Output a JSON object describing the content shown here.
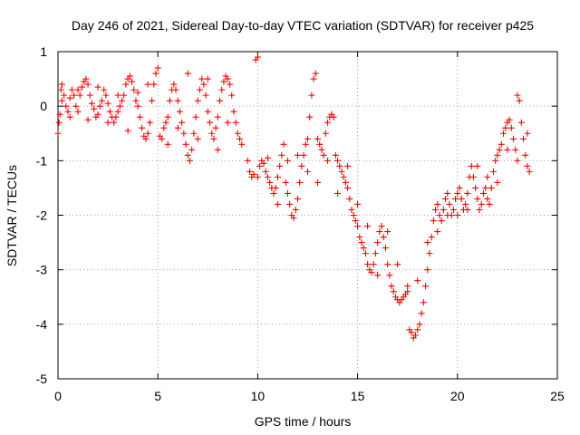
{
  "chart_data": {
    "type": "scatter",
    "title": "Day 246 of 2021, Sidereal Day-to-day VTEC variation (SDTVAR) for receiver p425",
    "xlabel": "GPS time / hours",
    "ylabel": "SDTVAR / TECUs",
    "xlim": [
      0,
      25
    ],
    "ylim": [
      -5,
      1
    ],
    "xticks": [
      0,
      5,
      10,
      15,
      20,
      25
    ],
    "yticks": [
      1,
      0,
      -1,
      -2,
      -3,
      -4,
      -5
    ],
    "x_tick_labels": [
      "0",
      "5",
      "10",
      "15",
      "20",
      "25"
    ],
    "y_tick_labels": [
      "1",
      "0",
      "-1",
      "-2",
      "-3",
      "-4",
      "-5"
    ],
    "grid": true,
    "marker": "+",
    "color": "#ff0000",
    "series": [
      {
        "name": "SDTVAR",
        "points": [
          [
            0.0,
            -0.5
          ],
          [
            0.05,
            -0.3
          ],
          [
            0.1,
            -0.15
          ],
          [
            0.15,
            0.3
          ],
          [
            0.2,
            0.4
          ],
          [
            0.3,
            0.2
          ],
          [
            0.4,
            0.0
          ],
          [
            0.5,
            -0.1
          ],
          [
            0.6,
            0.15
          ],
          [
            0.7,
            0.3
          ],
          [
            0.8,
            0.2
          ],
          [
            0.9,
            0.0
          ],
          [
            1.0,
            -0.1
          ],
          [
            1.1,
            0.2
          ],
          [
            1.2,
            0.35
          ],
          [
            1.3,
            0.45
          ],
          [
            1.4,
            0.5
          ],
          [
            1.5,
            0.4
          ],
          [
            1.6,
            0.2
          ],
          [
            1.7,
            0.05
          ],
          [
            1.8,
            -0.05
          ],
          [
            1.9,
            -0.2
          ],
          [
            2.0,
            -0.15
          ],
          [
            2.1,
            0.0
          ],
          [
            2.2,
            0.1
          ],
          [
            2.3,
            0.3
          ],
          [
            2.4,
            0.2
          ],
          [
            2.5,
            0.05
          ],
          [
            2.6,
            -0.1
          ],
          [
            2.7,
            -0.2
          ],
          [
            2.8,
            -0.3
          ],
          [
            2.9,
            -0.2
          ],
          [
            3.0,
            -0.1
          ],
          [
            3.1,
            0.0
          ],
          [
            3.2,
            0.1
          ],
          [
            3.3,
            0.2
          ],
          [
            3.4,
            0.4
          ],
          [
            3.5,
            0.5
          ],
          [
            3.6,
            0.55
          ],
          [
            3.7,
            0.45
          ],
          [
            3.8,
            0.3
          ],
          [
            3.9,
            0.1
          ],
          [
            4.0,
            0.0
          ],
          [
            4.1,
            -0.2
          ],
          [
            4.2,
            -0.4
          ],
          [
            4.3,
            -0.55
          ],
          [
            4.4,
            -0.6
          ],
          [
            4.5,
            -0.5
          ],
          [
            4.6,
            -0.3
          ],
          [
            4.7,
            0.1
          ],
          [
            4.8,
            0.4
          ],
          [
            4.9,
            0.6
          ],
          [
            5.0,
            0.7
          ],
          [
            5.1,
            -0.55
          ],
          [
            5.2,
            -0.6
          ],
          [
            5.3,
            -0.4
          ],
          [
            5.4,
            -0.3
          ],
          [
            5.5,
            -0.2
          ],
          [
            5.6,
            0.1
          ],
          [
            5.7,
            0.3
          ],
          [
            5.8,
            0.4
          ],
          [
            5.9,
            0.3
          ],
          [
            6.0,
            0.1
          ],
          [
            6.1,
            -0.1
          ],
          [
            6.2,
            -0.3
          ],
          [
            6.3,
            -0.5
          ],
          [
            6.4,
            -0.7
          ],
          [
            6.5,
            -0.9
          ],
          [
            6.6,
            -1.0
          ],
          [
            6.7,
            -0.8
          ],
          [
            6.8,
            -0.5
          ],
          [
            6.9,
            -0.2
          ],
          [
            7.0,
            0.1
          ],
          [
            7.1,
            0.3
          ],
          [
            7.2,
            0.5
          ],
          [
            7.3,
            0.4
          ],
          [
            7.4,
            0.2
          ],
          [
            7.5,
            -0.1
          ],
          [
            7.6,
            -0.3
          ],
          [
            7.7,
            -0.5
          ],
          [
            7.8,
            -0.6
          ],
          [
            7.9,
            -0.4
          ],
          [
            8.0,
            -0.2
          ],
          [
            8.1,
            0.1
          ],
          [
            8.2,
            0.3
          ],
          [
            8.3,
            0.45
          ],
          [
            8.4,
            0.55
          ],
          [
            8.5,
            0.5
          ],
          [
            8.6,
            0.4
          ],
          [
            8.7,
            0.2
          ],
          [
            8.8,
            -0.1
          ],
          [
            8.9,
            -0.3
          ],
          [
            9.0,
            -0.5
          ],
          [
            9.1,
            -0.6
          ],
          [
            9.2,
            -0.7
          ],
          [
            9.6,
            -1.2
          ],
          [
            9.7,
            -1.3
          ],
          [
            9.8,
            -1.25
          ],
          [
            9.9,
            0.85
          ],
          [
            10.0,
            0.9
          ],
          [
            10.1,
            -1.1
          ],
          [
            10.2,
            -1.0
          ],
          [
            10.3,
            -1.05
          ],
          [
            10.4,
            -1.2
          ],
          [
            10.5,
            -1.3
          ],
          [
            10.6,
            -1.4
          ],
          [
            10.7,
            -1.5
          ],
          [
            10.8,
            -1.6
          ],
          [
            10.9,
            -1.5
          ],
          [
            11.0,
            -1.3
          ],
          [
            11.1,
            -1.1
          ],
          [
            11.2,
            -0.9
          ],
          [
            11.3,
            -0.7
          ],
          [
            11.4,
            -1.4
          ],
          [
            11.5,
            -1.6
          ],
          [
            11.6,
            -1.8
          ],
          [
            11.7,
            -2.0
          ],
          [
            11.8,
            -2.05
          ],
          [
            11.9,
            -1.9
          ],
          [
            12.0,
            -1.7
          ],
          [
            12.1,
            -1.4
          ],
          [
            12.2,
            -1.1
          ],
          [
            12.3,
            -0.9
          ],
          [
            12.4,
            -0.7
          ],
          [
            12.5,
            -0.6
          ],
          [
            12.6,
            -0.2
          ],
          [
            12.7,
            0.2
          ],
          [
            12.8,
            0.5
          ],
          [
            12.9,
            0.6
          ],
          [
            13.0,
            -0.6
          ],
          [
            13.1,
            -0.7
          ],
          [
            13.2,
            -0.8
          ],
          [
            13.3,
            -0.9
          ],
          [
            13.4,
            -0.5
          ],
          [
            13.5,
            -0.3
          ],
          [
            13.6,
            -0.2
          ],
          [
            13.7,
            -0.15
          ],
          [
            13.8,
            -0.2
          ],
          [
            13.9,
            -0.9
          ],
          [
            14.0,
            -1.0
          ],
          [
            14.1,
            -1.1
          ],
          [
            14.2,
            -1.2
          ],
          [
            14.3,
            -1.3
          ],
          [
            14.4,
            -1.4
          ],
          [
            14.5,
            -1.5
          ],
          [
            14.6,
            -1.7
          ],
          [
            14.7,
            -1.9
          ],
          [
            14.8,
            -2.0
          ],
          [
            14.9,
            -2.1
          ],
          [
            15.0,
            -2.2
          ],
          [
            15.1,
            -2.4
          ],
          [
            15.2,
            -2.5
          ],
          [
            15.3,
            -2.6
          ],
          [
            15.4,
            -2.7
          ],
          [
            15.5,
            -2.9
          ],
          [
            15.6,
            -3.0
          ],
          [
            15.7,
            -3.05
          ],
          [
            15.8,
            -2.9
          ],
          [
            15.9,
            -2.7
          ],
          [
            16.0,
            -2.5
          ],
          [
            16.1,
            -2.3
          ],
          [
            16.2,
            -2.2
          ],
          [
            16.3,
            -2.4
          ],
          [
            16.4,
            -2.6
          ],
          [
            16.5,
            -2.9
          ],
          [
            16.6,
            -3.1
          ],
          [
            16.7,
            -3.3
          ],
          [
            16.8,
            -3.4
          ],
          [
            16.9,
            -3.5
          ],
          [
            17.0,
            -3.55
          ],
          [
            17.1,
            -3.6
          ],
          [
            17.2,
            -3.55
          ],
          [
            17.3,
            -3.5
          ],
          [
            17.4,
            -3.45
          ],
          [
            17.5,
            -3.3
          ],
          [
            17.6,
            -4.1
          ],
          [
            17.7,
            -4.15
          ],
          [
            17.8,
            -4.25
          ],
          [
            17.9,
            -4.2
          ],
          [
            18.0,
            -4.1
          ],
          [
            18.1,
            -4.0
          ],
          [
            18.2,
            -3.8
          ],
          [
            18.3,
            -3.6
          ],
          [
            18.4,
            -3.3
          ],
          [
            18.5,
            -3.0
          ],
          [
            18.6,
            -2.7
          ],
          [
            18.7,
            -2.4
          ],
          [
            18.8,
            -2.1
          ],
          [
            18.9,
            -1.9
          ],
          [
            19.0,
            -1.8
          ],
          [
            19.1,
            -2.0
          ],
          [
            19.2,
            -2.1
          ],
          [
            19.3,
            -1.9
          ],
          [
            19.4,
            -1.7
          ],
          [
            19.5,
            -1.6
          ],
          [
            19.6,
            -1.8
          ],
          [
            19.7,
            -2.0
          ],
          [
            19.8,
            -1.9
          ],
          [
            19.9,
            -1.7
          ],
          [
            20.0,
            -1.6
          ],
          [
            20.1,
            -1.5
          ],
          [
            20.2,
            -1.7
          ],
          [
            20.3,
            -1.9
          ],
          [
            20.4,
            -1.8
          ],
          [
            20.5,
            -1.6
          ],
          [
            20.6,
            -1.3
          ],
          [
            20.7,
            -1.1
          ],
          [
            20.8,
            -1.3
          ],
          [
            20.9,
            -1.5
          ],
          [
            21.0,
            -1.7
          ],
          [
            21.1,
            -1.9
          ],
          [
            21.2,
            -1.8
          ],
          [
            21.3,
            -1.6
          ],
          [
            21.4,
            -1.5
          ],
          [
            21.5,
            -1.7
          ],
          [
            21.6,
            -1.8
          ],
          [
            21.7,
            -1.5
          ],
          [
            21.8,
            -1.2
          ],
          [
            21.9,
            -1.0
          ],
          [
            22.0,
            -0.9
          ],
          [
            22.1,
            -0.8
          ],
          [
            22.2,
            -0.7
          ],
          [
            22.3,
            -0.5
          ],
          [
            22.4,
            -0.4
          ],
          [
            22.5,
            -0.3
          ],
          [
            22.6,
            -0.25
          ],
          [
            22.7,
            -0.4
          ],
          [
            22.8,
            -0.6
          ],
          [
            22.9,
            -0.8
          ],
          [
            23.0,
            0.2
          ],
          [
            23.1,
            0.1
          ],
          [
            23.2,
            -0.3
          ],
          [
            23.3,
            -0.6
          ],
          [
            23.4,
            -0.9
          ],
          [
            23.5,
            -1.1
          ],
          [
            23.6,
            -1.2
          ],
          [
            0.2,
            0.1
          ],
          [
            0.6,
            -0.2
          ],
          [
            1.0,
            0.3
          ],
          [
            1.5,
            -0.25
          ],
          [
            2.0,
            0.35
          ],
          [
            2.5,
            -0.3
          ],
          [
            3.0,
            0.2
          ],
          [
            3.5,
            -0.45
          ],
          [
            4.0,
            0.25
          ],
          [
            4.5,
            0.4
          ],
          [
            5.5,
            -0.7
          ],
          [
            6.0,
            -0.4
          ],
          [
            6.5,
            0.6
          ],
          [
            7.0,
            -0.6
          ],
          [
            7.5,
            0.5
          ],
          [
            8.0,
            -0.8
          ],
          [
            8.5,
            -0.3
          ],
          [
            9.5,
            -1.0
          ],
          [
            10.0,
            -1.3
          ],
          [
            10.5,
            -0.95
          ],
          [
            11.0,
            -1.8
          ],
          [
            11.5,
            -1.0
          ],
          [
            12.0,
            -0.9
          ],
          [
            12.5,
            -1.2
          ],
          [
            13.0,
            -1.4
          ],
          [
            13.5,
            -1.0
          ],
          [
            14.0,
            -1.6
          ],
          [
            14.5,
            -1.1
          ],
          [
            15.0,
            -1.8
          ],
          [
            15.5,
            -2.2
          ],
          [
            16.0,
            -3.1
          ],
          [
            16.5,
            -2.3
          ],
          [
            17.0,
            -2.9
          ],
          [
            17.5,
            -3.4
          ],
          [
            18.0,
            -3.2
          ],
          [
            18.5,
            -2.5
          ],
          [
            19.0,
            -2.3
          ],
          [
            19.5,
            -2.0
          ],
          [
            20.0,
            -2.0
          ],
          [
            20.5,
            -1.9
          ],
          [
            21.0,
            -1.1
          ],
          [
            21.5,
            -1.3
          ],
          [
            22.0,
            -1.4
          ],
          [
            22.5,
            -0.8
          ],
          [
            23.0,
            -1.0
          ],
          [
            23.5,
            -0.5
          ]
        ]
      }
    ]
  }
}
